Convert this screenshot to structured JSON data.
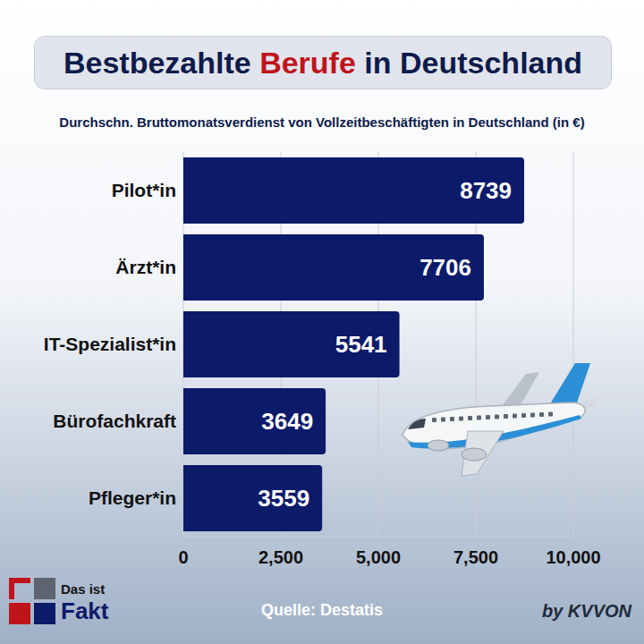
{
  "chart_data": {
    "type": "bar",
    "title": "Bestbezahlte Berufe in Deutschland",
    "subtitle": "Durchschn. Bruttomonatsverdienst von Vollzeitbeschäftigten in Deutschland (in €)",
    "categories": [
      "Pilot*in",
      "Ärzt*in",
      "IT-Spezialist*in",
      "Bürofachkraft",
      "Pfleger*in"
    ],
    "values": [
      8739,
      7706,
      5541,
      3649,
      3559
    ],
    "color": "#0c1a6a",
    "orientation": "horizontal",
    "xlim": [
      0,
      10000
    ],
    "xticks": [
      0,
      {
        "value": 2500,
        "label": "2,500"
      },
      {
        "value": 5000,
        "label": "5,000"
      },
      {
        "value": 7500,
        "label": "7,500"
      },
      {
        "value": 10000,
        "label": "10,000"
      }
    ],
    "grid": true,
    "data_labels": true,
    "source": "Quelle: Destatis",
    "logo": {
      "line1": "Das ist",
      "line2": "Fakt"
    },
    "credit": "by KVVON"
  }
}
